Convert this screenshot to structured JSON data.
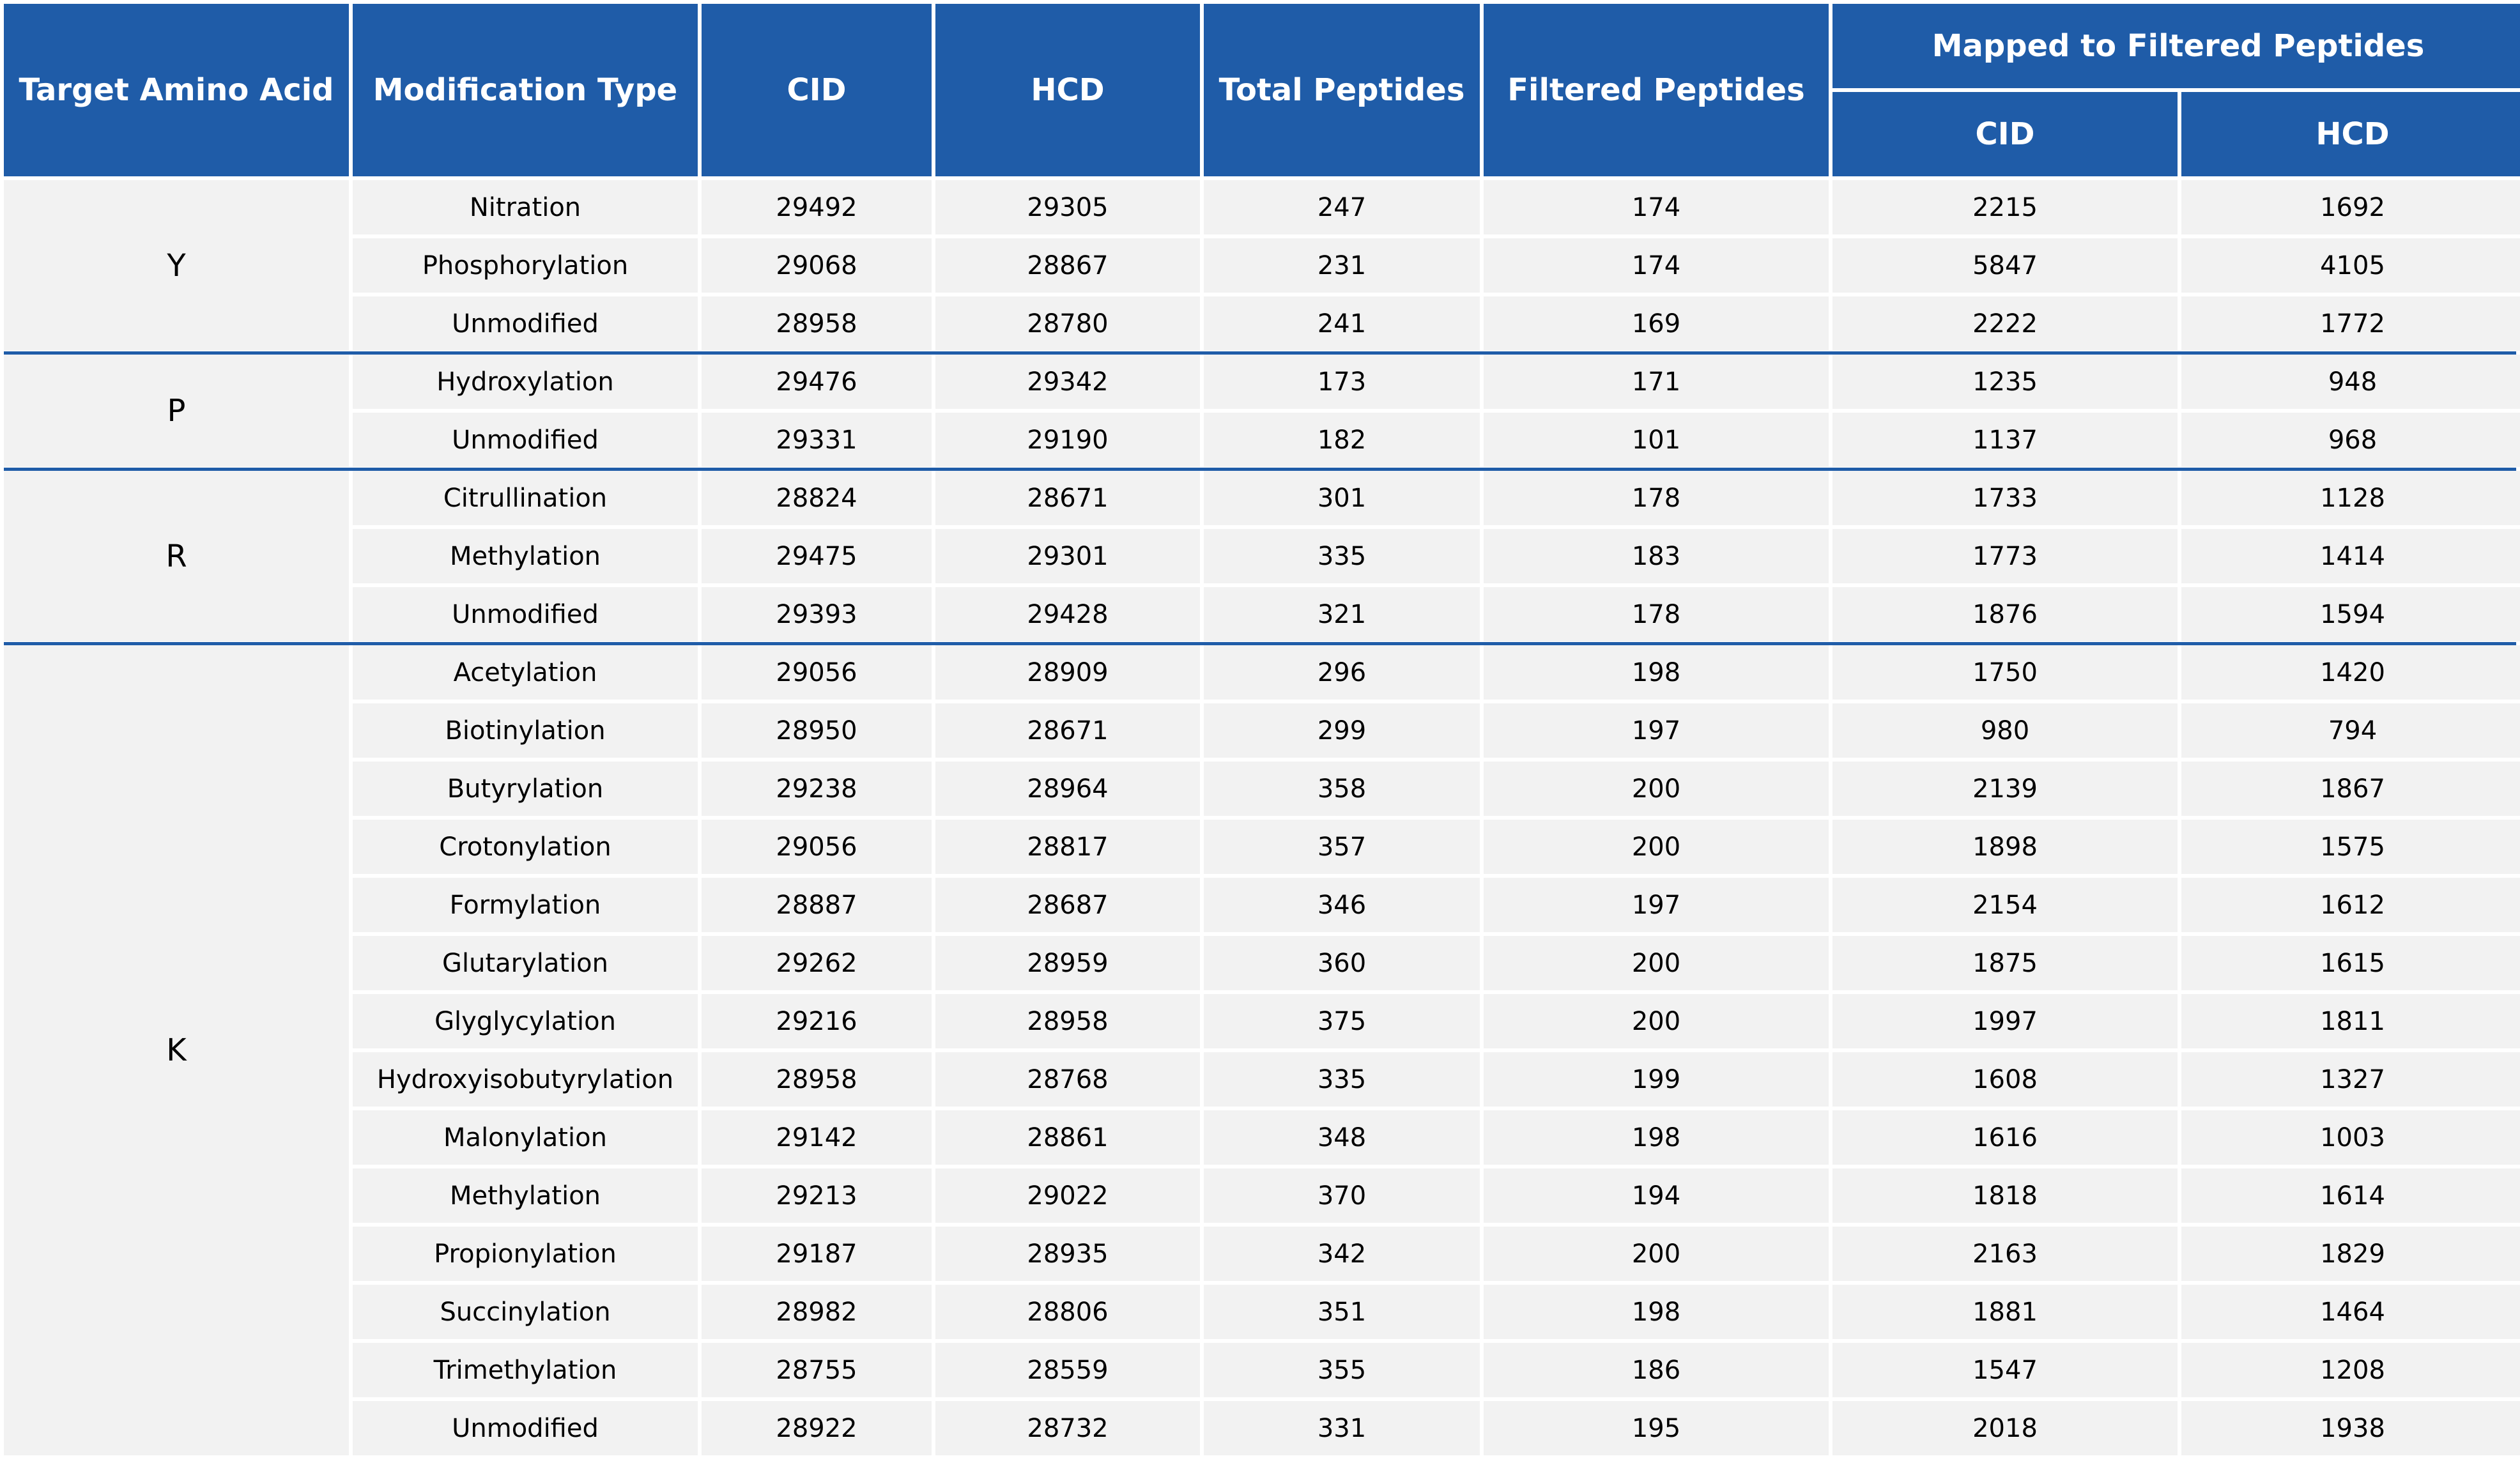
{
  "headers": {
    "target": "Target Amino Acid",
    "modification": "Modification Type",
    "cid": "CID",
    "hcd": "HCD",
    "total": "Total Peptides",
    "filtered": "Filtered Peptides",
    "mapped": "Mapped to Filtered Peptides",
    "mapped_cid": "CID",
    "mapped_hcd": "HCD"
  },
  "groups": [
    {
      "amino_acid": "Y",
      "rows": [
        {
          "mod": "Nitration",
          "cid": "29492",
          "hcd": "29305",
          "total": "247",
          "filtered": "174",
          "mcid": "2215",
          "mhcd": "1692"
        },
        {
          "mod": "Phosphorylation",
          "cid": "29068",
          "hcd": "28867",
          "total": "231",
          "filtered": "174",
          "mcid": "5847",
          "mhcd": "4105"
        },
        {
          "mod": "Unmodified",
          "cid": "28958",
          "hcd": "28780",
          "total": "241",
          "filtered": "169",
          "mcid": "2222",
          "mhcd": "1772"
        }
      ]
    },
    {
      "amino_acid": "P",
      "rows": [
        {
          "mod": "Hydroxylation",
          "cid": "29476",
          "hcd": "29342",
          "total": "173",
          "filtered": "171",
          "mcid": "1235",
          "mhcd": "948"
        },
        {
          "mod": "Unmodified",
          "cid": "29331",
          "hcd": "29190",
          "total": "182",
          "filtered": "101",
          "mcid": "1137",
          "mhcd": "968"
        }
      ]
    },
    {
      "amino_acid": "R",
      "rows": [
        {
          "mod": "Citrullination",
          "cid": "28824",
          "hcd": "28671",
          "total": "301",
          "filtered": "178",
          "mcid": "1733",
          "mhcd": "1128"
        },
        {
          "mod": "Methylation",
          "cid": "29475",
          "hcd": "29301",
          "total": "335",
          "filtered": "183",
          "mcid": "1773",
          "mhcd": "1414"
        },
        {
          "mod": "Unmodified",
          "cid": "29393",
          "hcd": "29428",
          "total": "321",
          "filtered": "178",
          "mcid": "1876",
          "mhcd": "1594"
        }
      ]
    },
    {
      "amino_acid": "K",
      "rows": [
        {
          "mod": "Acetylation",
          "cid": "29056",
          "hcd": "28909",
          "total": "296",
          "filtered": "198",
          "mcid": "1750",
          "mhcd": "1420"
        },
        {
          "mod": "Biotinylation",
          "cid": "28950",
          "hcd": "28671",
          "total": "299",
          "filtered": "197",
          "mcid": "980",
          "mhcd": "794"
        },
        {
          "mod": "Butyrylation",
          "cid": "29238",
          "hcd": "28964",
          "total": "358",
          "filtered": "200",
          "mcid": "2139",
          "mhcd": "1867"
        },
        {
          "mod": "Crotonylation",
          "cid": "29056",
          "hcd": "28817",
          "total": "357",
          "filtered": "200",
          "mcid": "1898",
          "mhcd": "1575"
        },
        {
          "mod": "Formylation",
          "cid": "28887",
          "hcd": "28687",
          "total": "346",
          "filtered": "197",
          "mcid": "2154",
          "mhcd": "1612"
        },
        {
          "mod": "Glutarylation",
          "cid": "29262",
          "hcd": "28959",
          "total": "360",
          "filtered": "200",
          "mcid": "1875",
          "mhcd": "1615"
        },
        {
          "mod": "Glyglycylation",
          "cid": "29216",
          "hcd": "28958",
          "total": "375",
          "filtered": "200",
          "mcid": "1997",
          "mhcd": "1811"
        },
        {
          "mod": "Hydroxyisobutyrylation",
          "cid": "28958",
          "hcd": "28768",
          "total": "335",
          "filtered": "199",
          "mcid": "1608",
          "mhcd": "1327"
        },
        {
          "mod": "Malonylation",
          "cid": "29142",
          "hcd": "28861",
          "total": "348",
          "filtered": "198",
          "mcid": "1616",
          "mhcd": "1003"
        },
        {
          "mod": "Methylation",
          "cid": "29213",
          "hcd": "29022",
          "total": "370",
          "filtered": "194",
          "mcid": "1818",
          "mhcd": "1614"
        },
        {
          "mod": "Propionylation",
          "cid": "29187",
          "hcd": "28935",
          "total": "342",
          "filtered": "200",
          "mcid": "2163",
          "mhcd": "1829"
        },
        {
          "mod": "Succinylation",
          "cid": "28982",
          "hcd": "28806",
          "total": "351",
          "filtered": "198",
          "mcid": "1881",
          "mhcd": "1464"
        },
        {
          "mod": "Trimethylation",
          "cid": "28755",
          "hcd": "28559",
          "total": "355",
          "filtered": "186",
          "mcid": "1547",
          "mhcd": "1208"
        },
        {
          "mod": "Unmodified",
          "cid": "28922",
          "hcd": "28732",
          "total": "331",
          "filtered": "195",
          "mcid": "2018",
          "mhcd": "1938"
        }
      ]
    }
  ]
}
